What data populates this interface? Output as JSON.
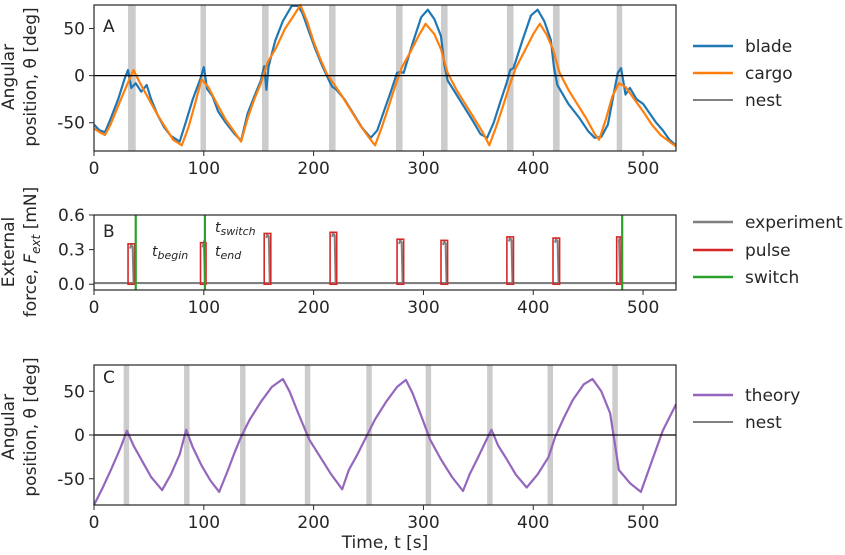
{
  "chart_data": [
    {
      "panel": "A",
      "type": "line",
      "ylabel_line1": "Angular",
      "ylabel_line2": "position, θ [deg]",
      "xlim": [
        0,
        530
      ],
      "ylim": [
        -80,
        75
      ],
      "xticks": [
        0,
        100,
        200,
        300,
        400,
        500
      ],
      "yticks": [
        -50,
        0,
        50
      ],
      "shaded_intervals": [
        [
          31,
          38
        ],
        [
          97,
          102
        ],
        [
          153,
          159
        ],
        [
          214,
          220
        ],
        [
          275,
          281
        ],
        [
          316,
          322
        ],
        [
          376,
          382
        ],
        [
          418,
          424
        ],
        [
          476,
          481
        ]
      ],
      "series": [
        {
          "name": "blade",
          "color": "#1f77b4",
          "x": [
            0,
            5,
            10,
            15,
            22,
            28,
            31,
            34,
            38,
            43,
            48,
            52,
            58,
            64,
            70,
            78,
            84,
            90,
            97,
            100,
            103,
            108,
            113,
            120,
            128,
            134,
            140,
            146,
            152,
            155,
            157,
            159,
            165,
            172,
            180,
            186,
            190,
            196,
            202,
            208,
            214,
            217,
            220,
            228,
            236,
            244,
            252,
            258,
            264,
            270,
            276,
            279,
            282,
            290,
            298,
            304,
            310,
            316,
            319,
            322,
            330,
            338,
            346,
            352,
            358,
            364,
            370,
            376,
            379,
            382,
            390,
            398,
            404,
            410,
            416,
            419,
            422,
            432,
            442,
            450,
            456,
            462,
            468,
            474,
            477,
            480,
            484,
            488,
            494,
            500,
            506,
            512,
            518,
            524,
            530
          ],
          "values": [
            -52,
            -58,
            -60,
            -46,
            -25,
            -3,
            6,
            -13,
            -8,
            -17,
            -10,
            -25,
            -42,
            -55,
            -64,
            -70,
            -48,
            -25,
            -3,
            9,
            -14,
            -22,
            -38,
            -50,
            -62,
            -69,
            -40,
            -22,
            -5,
            10,
            -15,
            10,
            37,
            58,
            74,
            74,
            66,
            46,
            27,
            10,
            -5,
            -12,
            -14,
            -25,
            -40,
            -55,
            -66,
            -58,
            -38,
            -18,
            3,
            4,
            3,
            34,
            62,
            70,
            60,
            42,
            12,
            -5,
            -20,
            -35,
            -50,
            -62,
            -66,
            -50,
            -28,
            -7,
            6,
            8,
            37,
            64,
            70,
            58,
            38,
            8,
            -10,
            -30,
            -45,
            -59,
            -66,
            -65,
            -52,
            -15,
            3,
            8,
            -20,
            -13,
            -25,
            -30,
            -40,
            -50,
            -58,
            -68,
            -74
          ]
        },
        {
          "name": "cargo",
          "color": "#ff7f0e",
          "x": [
            0,
            5,
            10,
            15,
            22,
            30,
            36,
            42,
            50,
            58,
            66,
            72,
            80,
            86,
            92,
            98,
            104,
            112,
            120,
            128,
            134,
            140,
            146,
            152,
            158,
            166,
            174,
            182,
            188,
            194,
            200,
            206,
            212,
            218,
            226,
            234,
            242,
            250,
            256,
            262,
            268,
            274,
            280,
            288,
            296,
            302,
            310,
            316,
            322,
            330,
            338,
            346,
            354,
            360,
            366,
            372,
            378,
            384,
            392,
            400,
            406,
            412,
            418,
            424,
            432,
            440,
            448,
            456,
            460,
            466,
            472,
            478,
            484,
            492,
            500,
            508,
            516,
            524,
            530
          ],
          "values": [
            -56,
            -60,
            -63,
            -52,
            -32,
            -10,
            6,
            -8,
            -25,
            -42,
            -57,
            -68,
            -74,
            -55,
            -30,
            -4,
            -12,
            -30,
            -47,
            -60,
            -70,
            -45,
            -25,
            -8,
            14,
            30,
            50,
            64,
            75,
            58,
            36,
            18,
            2,
            -8,
            -22,
            -37,
            -52,
            -65,
            -74,
            -55,
            -34,
            -12,
            8,
            25,
            43,
            55,
            44,
            28,
            3,
            -15,
            -30,
            -45,
            -60,
            -74,
            -55,
            -34,
            -12,
            8,
            26,
            44,
            55,
            44,
            28,
            3,
            -15,
            -30,
            -45,
            -62,
            -68,
            -47,
            -22,
            -8,
            -12,
            -25,
            -38,
            -52,
            -63,
            -70,
            -75
          ]
        },
        {
          "name": "nest",
          "color": "#000000",
          "x": [
            0,
            530
          ],
          "values": [
            0,
            0
          ]
        }
      ],
      "legend": [
        "blade",
        "cargo",
        "nest"
      ]
    },
    {
      "panel": "B",
      "type": "line",
      "ylabel_line1": "External",
      "ylabel_line2": "force, F_ext [mN]",
      "xlim": [
        0,
        530
      ],
      "ylim": [
        -0.05,
        0.6
      ],
      "xticks": [
        0,
        100,
        200,
        300,
        400,
        500
      ],
      "yticks": [
        0.0,
        0.3,
        0.6
      ],
      "ytick_labels": [
        "0.0",
        "0.3",
        "0.6"
      ],
      "pulses": [
        {
          "start": 31,
          "end": 37,
          "height": 0.35
        },
        {
          "start": 97,
          "end": 102,
          "height": 0.36
        },
        {
          "start": 155,
          "end": 161,
          "height": 0.44
        },
        {
          "start": 215,
          "end": 221,
          "height": 0.45
        },
        {
          "start": 276,
          "end": 282,
          "height": 0.39
        },
        {
          "start": 316,
          "end": 322,
          "height": 0.38
        },
        {
          "start": 376,
          "end": 382,
          "height": 0.41
        },
        {
          "start": 418,
          "end": 424,
          "height": 0.4
        },
        {
          "start": 476,
          "end": 480,
          "height": 0.41
        }
      ],
      "experiment_level": 0.01,
      "switches": [
        38,
        101,
        481
      ],
      "annotations": {
        "t_begin": "t",
        "t_begin_sub": "begin",
        "t_switch": "t",
        "t_switch_sub": "switch",
        "t_end": "t",
        "t_end_sub": "end"
      },
      "legend": [
        "experiment",
        "pulse",
        "switch"
      ],
      "colors": {
        "experiment": "#7f7f7f",
        "pulse": "#d62728",
        "switch": "#2ca02c"
      }
    },
    {
      "panel": "C",
      "type": "line",
      "ylabel_line1": "Angular",
      "ylabel_line2": "position, θ [deg]",
      "xlabel": "Time, t [s]",
      "xlim": [
        0,
        530
      ],
      "ylim": [
        -80,
        80
      ],
      "xticks": [
        0,
        100,
        200,
        300,
        400,
        500
      ],
      "yticks": [
        -50,
        0,
        50
      ],
      "shaded_intervals": [
        [
          27,
          32
        ],
        [
          82,
          87
        ],
        [
          133,
          138
        ],
        [
          192,
          197
        ],
        [
          248,
          253
        ],
        [
          302,
          307
        ],
        [
          358,
          363
        ],
        [
          413,
          418
        ],
        [
          472,
          477
        ]
      ],
      "series": [
        {
          "name": "theory",
          "color": "#9467bd",
          "x": [
            0,
            8,
            16,
            24,
            30,
            36,
            44,
            52,
            62,
            70,
            78,
            84,
            90,
            98,
            106,
            114,
            122,
            128,
            134,
            142,
            152,
            162,
            172,
            178,
            186,
            196,
            206,
            216,
            226,
            232,
            240,
            248,
            256,
            266,
            276,
            284,
            290,
            298,
            306,
            316,
            326,
            336,
            342,
            350,
            358,
            362,
            368,
            376,
            384,
            394,
            404,
            414,
            420,
            428,
            436,
            446,
            454,
            462,
            470,
            478,
            488,
            498,
            508,
            518,
            530
          ],
          "values": [
            -80,
            -60,
            -38,
            -15,
            5,
            -12,
            -30,
            -48,
            -63,
            -45,
            -22,
            6,
            -14,
            -35,
            -52,
            -65,
            -40,
            -20,
            -2,
            18,
            38,
            55,
            64,
            50,
            25,
            -5,
            -25,
            -45,
            -62,
            -40,
            -22,
            -2,
            18,
            38,
            55,
            63,
            48,
            22,
            -5,
            -28,
            -48,
            -64,
            -45,
            -25,
            -4,
            6,
            -12,
            -28,
            -45,
            -60,
            -45,
            -25,
            -2,
            20,
            40,
            58,
            64,
            50,
            25,
            -40,
            -55,
            -65,
            -30,
            5,
            35
          ]
        },
        {
          "name": "nest",
          "color": "#000000",
          "x": [
            0,
            530
          ],
          "values": [
            0,
            0
          ]
        }
      ],
      "legend": [
        "theory",
        "nest"
      ]
    }
  ],
  "labels": {
    "panel_a": "A",
    "panel_b": "B",
    "panel_c": "C",
    "legend_a": [
      "blade",
      "cargo",
      "nest"
    ],
    "legend_b": [
      "experiment",
      "pulse",
      "switch"
    ],
    "legend_c": [
      "theory",
      "nest"
    ]
  }
}
